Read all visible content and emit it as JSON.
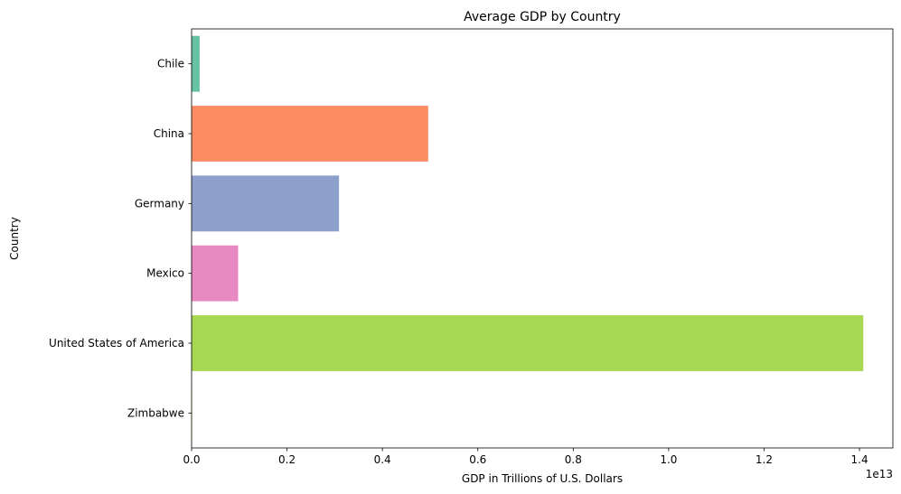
{
  "chart_data": {
    "type": "bar",
    "orientation": "horizontal",
    "title": "Average GDP by Country",
    "xlabel": "GDP in Trillions of U.S. Dollars",
    "ylabel": "Country",
    "x_offset_text": "1e13",
    "categories": [
      "Chile",
      "China",
      "Germany",
      "Mexico",
      "United States of America",
      "Zimbabwe"
    ],
    "values": [
      169000000000.0,
      4960000000000.0,
      3090000000000.0,
      976000000000.0,
      14080000000000.0,
      9100000000.0
    ],
    "colors": [
      "#66c2a5",
      "#fc8d62",
      "#8da0cb",
      "#e78ac3",
      "#a6d854",
      "#ffd92f"
    ],
    "xlim": [
      0,
      14700000000000.0
    ],
    "xticks": [
      0.0,
      0.2,
      0.4,
      0.6,
      0.8,
      1.0,
      1.2,
      1.4
    ],
    "xtick_labels": [
      "0.0",
      "0.2",
      "0.4",
      "0.6",
      "0.8",
      "1.0",
      "1.2",
      "1.4"
    ],
    "x_tick_scale": 10000000000000.0,
    "grid": false,
    "legend": "none"
  }
}
